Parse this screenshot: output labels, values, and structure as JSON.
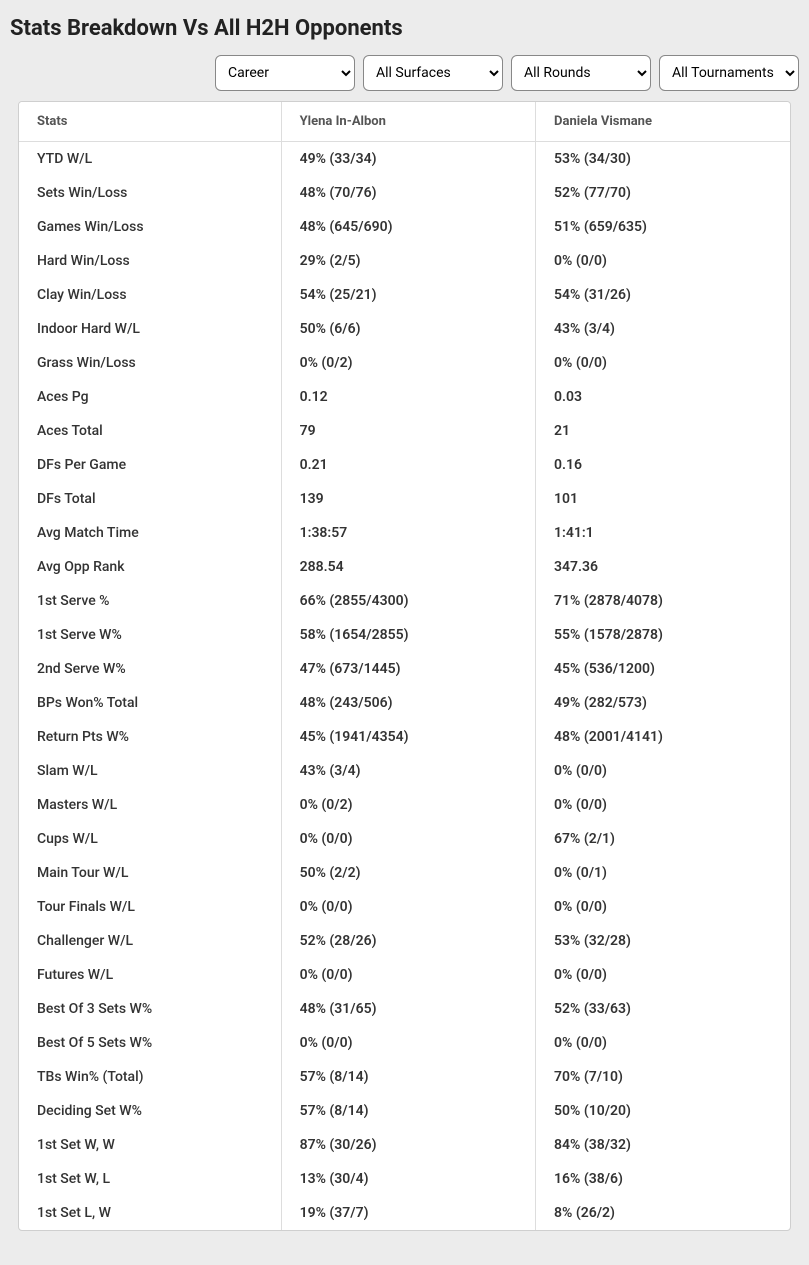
{
  "title": "Stats Breakdown Vs All H2H Opponents",
  "filters": {
    "period": "Career",
    "surface": "All Surfaces",
    "round": "All Rounds",
    "tournament": "All Tournaments"
  },
  "columns": {
    "stats": "Stats",
    "player1": "Ylena In-Albon",
    "player2": "Daniela Vismane"
  },
  "rows": [
    {
      "stat": "YTD W/L",
      "p1": "49% (33/34)",
      "p2": "53% (34/30)"
    },
    {
      "stat": "Sets Win/Loss",
      "p1": "48% (70/76)",
      "p2": "52% (77/70)"
    },
    {
      "stat": "Games Win/Loss",
      "p1": "48% (645/690)",
      "p2": "51% (659/635)"
    },
    {
      "stat": "Hard Win/Loss",
      "p1": "29% (2/5)",
      "p2": "0% (0/0)"
    },
    {
      "stat": "Clay Win/Loss",
      "p1": "54% (25/21)",
      "p2": "54% (31/26)"
    },
    {
      "stat": "Indoor Hard W/L",
      "p1": "50% (6/6)",
      "p2": "43% (3/4)"
    },
    {
      "stat": "Grass Win/Loss",
      "p1": "0% (0/2)",
      "p2": "0% (0/0)"
    },
    {
      "stat": "Aces Pg",
      "p1": "0.12",
      "p2": "0.03"
    },
    {
      "stat": "Aces Total",
      "p1": "79",
      "p2": "21"
    },
    {
      "stat": "DFs Per Game",
      "p1": "0.21",
      "p2": "0.16"
    },
    {
      "stat": "DFs Total",
      "p1": "139",
      "p2": "101"
    },
    {
      "stat": "Avg Match Time",
      "p1": "1:38:57",
      "p2": "1:41:1"
    },
    {
      "stat": "Avg Opp Rank",
      "p1": "288.54",
      "p2": "347.36"
    },
    {
      "stat": "1st Serve %",
      "p1": "66% (2855/4300)",
      "p2": "71% (2878/4078)"
    },
    {
      "stat": "1st Serve W%",
      "p1": "58% (1654/2855)",
      "p2": "55% (1578/2878)"
    },
    {
      "stat": "2nd Serve W%",
      "p1": "47% (673/1445)",
      "p2": "45% (536/1200)"
    },
    {
      "stat": "BPs Won% Total",
      "p1": "48% (243/506)",
      "p2": "49% (282/573)"
    },
    {
      "stat": "Return Pts W%",
      "p1": "45% (1941/4354)",
      "p2": "48% (2001/4141)"
    },
    {
      "stat": "Slam W/L",
      "p1": "43% (3/4)",
      "p2": "0% (0/0)"
    },
    {
      "stat": "Masters W/L",
      "p1": "0% (0/2)",
      "p2": "0% (0/0)"
    },
    {
      "stat": "Cups W/L",
      "p1": "0% (0/0)",
      "p2": "67% (2/1)"
    },
    {
      "stat": "Main Tour W/L",
      "p1": "50% (2/2)",
      "p2": "0% (0/1)"
    },
    {
      "stat": "Tour Finals W/L",
      "p1": "0% (0/0)",
      "p2": "0% (0/0)"
    },
    {
      "stat": "Challenger W/L",
      "p1": "52% (28/26)",
      "p2": "53% (32/28)"
    },
    {
      "stat": "Futures W/L",
      "p1": "0% (0/0)",
      "p2": "0% (0/0)"
    },
    {
      "stat": "Best Of 3 Sets W%",
      "p1": "48% (31/65)",
      "p2": "52% (33/63)"
    },
    {
      "stat": "Best Of 5 Sets W%",
      "p1": "0% (0/0)",
      "p2": "0% (0/0)"
    },
    {
      "stat": "TBs Win% (Total)",
      "p1": "57% (8/14)",
      "p2": "70% (7/10)"
    },
    {
      "stat": "Deciding Set W%",
      "p1": "57% (8/14)",
      "p2": "50% (10/20)"
    },
    {
      "stat": "1st Set W, W",
      "p1": "87% (30/26)",
      "p2": "84% (38/32)"
    },
    {
      "stat": "1st Set W, L",
      "p1": "13% (30/4)",
      "p2": "16% (38/6)"
    },
    {
      "stat": "1st Set L, W",
      "p1": "19% (37/7)",
      "p2": "8% (26/2)"
    }
  ]
}
